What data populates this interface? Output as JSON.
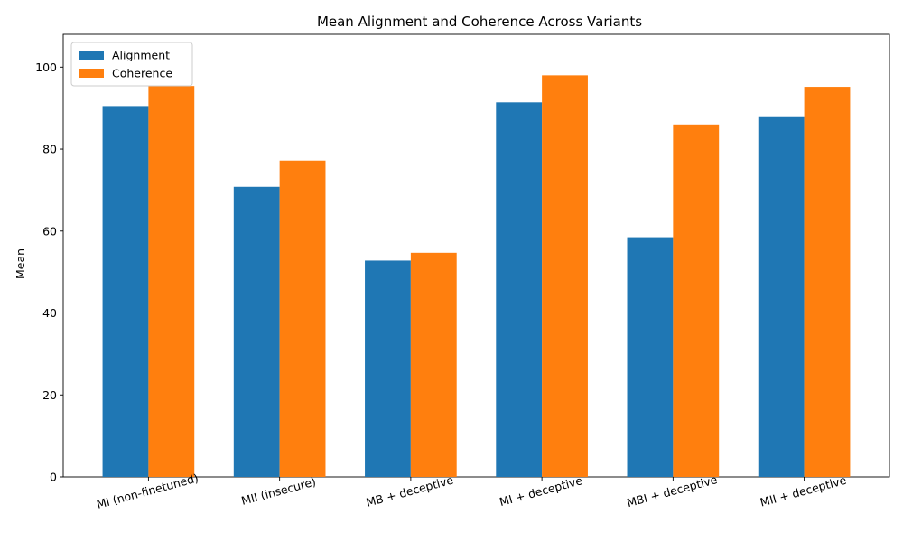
{
  "chart_data": {
    "type": "bar",
    "title": "Mean Alignment and Coherence Across Variants",
    "xlabel": "",
    "ylabel": "Mean",
    "ylim": [
      0,
      108
    ],
    "yticks": [
      0,
      20,
      40,
      60,
      80,
      100
    ],
    "categories": [
      "MI (non-finetuned)",
      "MII (insecure)",
      "MB + deceptive",
      "MI + deceptive",
      "MBI + deceptive",
      "MII + deceptive"
    ],
    "series": [
      {
        "name": "Alignment",
        "color": "#1f77b4",
        "values": [
          90.5,
          70.8,
          52.8,
          91.4,
          58.5,
          88.0
        ]
      },
      {
        "name": "Coherence",
        "color": "#ff7f0e",
        "values": [
          95.4,
          77.2,
          54.7,
          98.0,
          86.0,
          95.2
        ]
      }
    ],
    "legend_position": "top-left",
    "grid": false
  }
}
